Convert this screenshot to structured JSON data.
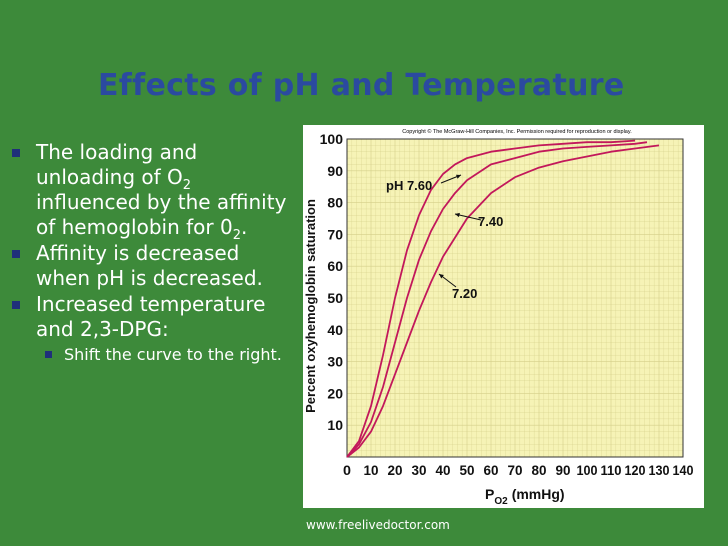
{
  "slide": {
    "title": "Effects of pH and Temperature",
    "bullets": [
      {
        "text_parts": [
          "The loading and unloading of O",
          "2",
          " influenced by the affinity of hemoglobin for 0",
          "2",
          "."
        ]
      },
      {
        "text": "Affinity is decreased when pH is decreased."
      },
      {
        "text": "Increased temperature and 2,3-DPG:"
      }
    ],
    "sub_bullets": [
      "Shift the curve to the right."
    ],
    "footer": "www.freelivedoctor.com"
  },
  "chart_data": {
    "type": "line",
    "copyright": "Copyright © The McGraw-Hill Companies, Inc. Permission required for reproduction or display.",
    "ylabel": "Percent oxyhemoglobin saturation",
    "xlabel_main": "P",
    "xlabel_sub": "O2",
    "xlabel_unit": "(mmHg)",
    "xlim": [
      0,
      140
    ],
    "ylim": [
      0,
      100
    ],
    "x_ticks": [
      0,
      10,
      20,
      30,
      40,
      50,
      60,
      70,
      80,
      90,
      100,
      110,
      120,
      130,
      140
    ],
    "y_ticks": [
      10,
      20,
      30,
      40,
      50,
      60,
      70,
      80,
      90,
      100
    ],
    "grid": true,
    "colors": {
      "curve": "#c2185b",
      "background": "#f6f3b6",
      "grid": "#d4cf8a"
    },
    "series": [
      {
        "name": "pH 7.60",
        "x": [
          0,
          5,
          10,
          15,
          20,
          25,
          30,
          35,
          40,
          45,
          50,
          60,
          70,
          80,
          90,
          100,
          110,
          120
        ],
        "y": [
          0,
          5,
          16,
          32,
          50,
          65,
          76,
          84,
          89,
          92,
          94,
          96,
          97,
          98,
          98.5,
          99,
          99,
          99.5
        ]
      },
      {
        "name": "7.40",
        "x": [
          0,
          5,
          10,
          15,
          20,
          25,
          30,
          35,
          40,
          45,
          50,
          60,
          70,
          80,
          90,
          100,
          110,
          120,
          125
        ],
        "y": [
          0,
          4,
          11,
          22,
          36,
          50,
          62,
          71,
          78,
          83,
          87,
          92,
          94,
          96,
          97,
          97.5,
          98,
          98.5,
          99
        ]
      },
      {
        "name": "7.20",
        "x": [
          0,
          5,
          10,
          15,
          20,
          25,
          30,
          35,
          40,
          45,
          50,
          60,
          70,
          80,
          90,
          100,
          110,
          120,
          130
        ],
        "y": [
          0,
          3,
          8,
          16,
          26,
          36,
          46,
          55,
          63,
          69,
          75,
          83,
          88,
          91,
          93,
          94.5,
          96,
          97,
          98
        ]
      }
    ],
    "annotations": [
      "pH 7.60",
      "7.40",
      "7.20"
    ]
  }
}
